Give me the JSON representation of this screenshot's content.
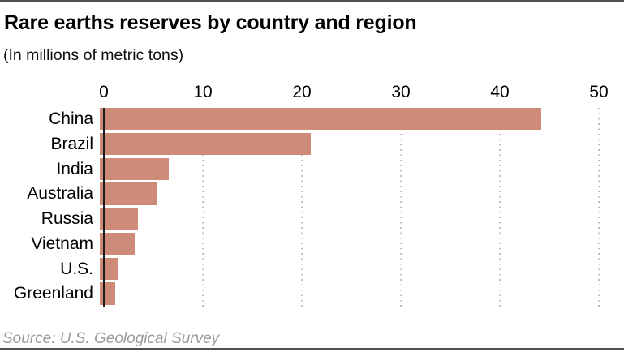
{
  "chart_data": {
    "type": "bar",
    "orientation": "horizontal",
    "title": "Rare earths reserves by country and region",
    "subtitle": "(In millions of metric tons)",
    "categories": [
      "China",
      "Brazil",
      "India",
      "Australia",
      "Russia",
      "Vietnam",
      "U.S.",
      "Greenland"
    ],
    "values": [
      44,
      21,
      6.9,
      5.7,
      3.8,
      3.5,
      1.9,
      1.5
    ],
    "x_ticks": [
      0,
      10,
      20,
      30,
      40,
      50
    ],
    "xlim": [
      0,
      50
    ],
    "grid": "vertical-dotted",
    "legend": "none",
    "bar_color": "#CE8B77",
    "axis_line_color": "#1c1c1c",
    "gridline_color": "#b9b9b9",
    "source": "Source: U.S. Geological Survey"
  }
}
